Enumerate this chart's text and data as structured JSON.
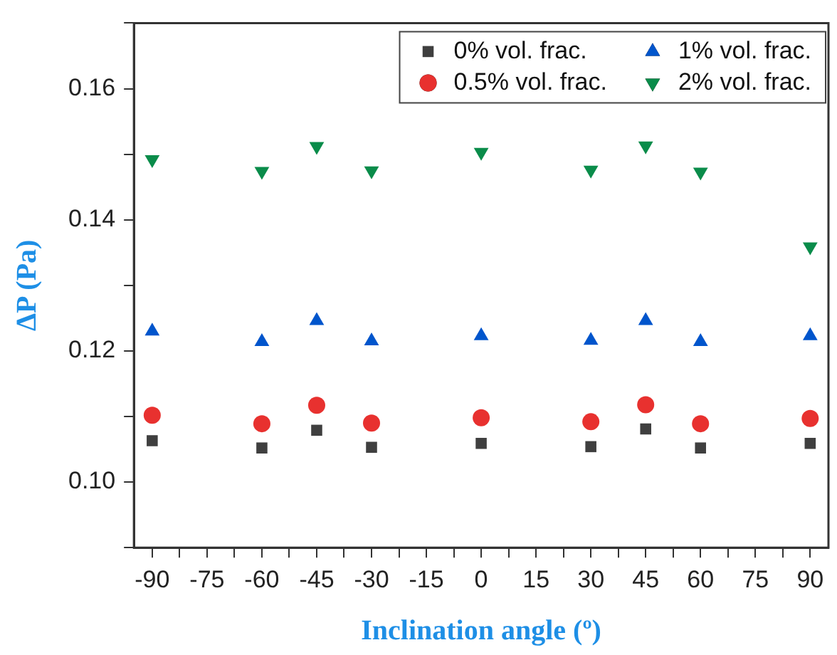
{
  "chart_data": {
    "type": "scatter",
    "xlabel": "Inclination angle (º)",
    "ylabel": "ΔP (Pa)",
    "x": [
      -90,
      -60,
      -45,
      -30,
      0,
      30,
      45,
      60,
      90
    ],
    "series": [
      {
        "name": "0% vol. frac.",
        "color": "#3f3f3f",
        "marker": "square",
        "values": [
          0.1063,
          0.1052,
          0.1079,
          0.1053,
          0.1059,
          0.1054,
          0.1081,
          0.1052,
          0.1059
        ]
      },
      {
        "name": "0.5% vol. frac.",
        "color": "#e8312f",
        "marker": "circle",
        "values": [
          0.1102,
          0.1089,
          0.1117,
          0.109,
          0.1098,
          0.1092,
          0.1118,
          0.1089,
          0.1097
        ]
      },
      {
        "name": "1% vol. frac.",
        "color": "#0055cc",
        "marker": "triangle",
        "values": [
          0.123,
          0.1214,
          0.1246,
          0.1215,
          0.1223,
          0.1216,
          0.1246,
          0.1214,
          0.1223
        ]
      },
      {
        "name": "2% vol. frac.",
        "color": "#0a8c4a",
        "marker": "triangle-down",
        "values": [
          0.1492,
          0.1474,
          0.1512,
          0.1475,
          0.1503,
          0.1476,
          0.1513,
          0.1473,
          0.1359
        ]
      }
    ],
    "xlim": [
      -95,
      95
    ],
    "xticks": [
      -90,
      {
        "value": -82.5,
        "label": null
      },
      -75,
      {
        "value": -67.5,
        "label": null
      },
      -60,
      {
        "value": -52.5,
        "label": null
      },
      -45,
      {
        "value": -37.5,
        "label": null
      },
      -30,
      {
        "value": -22.5,
        "label": null
      },
      -15,
      {
        "value": -7.5,
        "label": null
      },
      0,
      {
        "value": 7.5,
        "label": null
      },
      15,
      {
        "value": 22.5,
        "label": null
      },
      30,
      {
        "value": 37.5,
        "label": null
      },
      45,
      {
        "value": 52.5,
        "label": null
      },
      60,
      {
        "value": 67.5,
        "label": null
      },
      75,
      {
        "value": 82.5,
        "label": null
      },
      90
    ],
    "ylim": [
      0.09,
      0.17
    ],
    "yticks": [
      {
        "value": 0.09,
        "label": null
      },
      {
        "value": 0.1,
        "label": "0.10"
      },
      {
        "value": 0.11,
        "label": null
      },
      {
        "value": 0.12,
        "label": "0.12"
      },
      {
        "value": 0.13,
        "label": null
      },
      {
        "value": 0.14,
        "label": "0.14"
      },
      {
        "value": 0.15,
        "label": null
      },
      {
        "value": 0.16,
        "label": "0.16"
      },
      {
        "value": 0.17,
        "label": null
      }
    ],
    "grid": false,
    "legend": "top right"
  }
}
